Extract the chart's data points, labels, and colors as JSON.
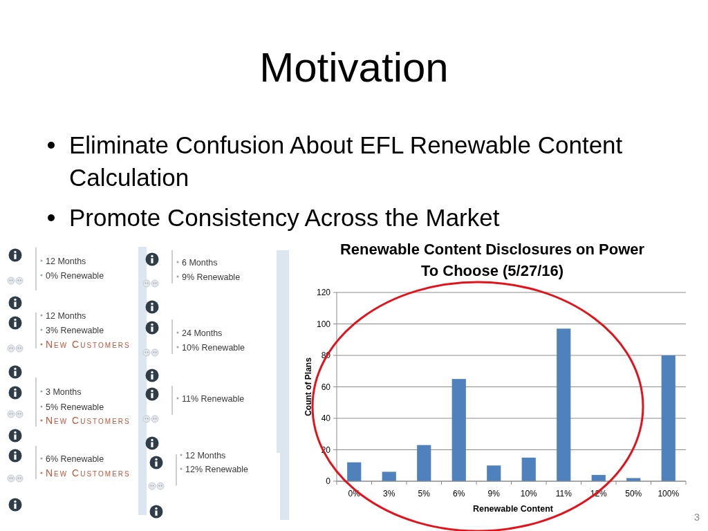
{
  "chart_data": {
    "type": "bar",
    "title": "Renewable Content Disclosures on Power To Choose (5/27/16)",
    "xlabel": "Renewable Content",
    "ylabel": "Count of Plans",
    "categories": [
      "0%",
      "3%",
      "5%",
      "6%",
      "9%",
      "10%",
      "11%",
      "12%",
      "50%",
      "100%"
    ],
    "values": [
      12,
      6,
      23,
      65,
      10,
      15,
      97,
      4,
      2,
      80
    ],
    "color": "#4f81bd",
    "ylim": [
      0,
      120
    ],
    "yticks": [
      0,
      20,
      40,
      60,
      80,
      100,
      120
    ],
    "grid": "y",
    "annotations": [
      "Motivation",
      "Eliminate Confusion About EFL Renewable Content Calculation",
      "Promote Consistency Across the Market",
      "3",
      "12 Months",
      "0% Renewable",
      "12 Months",
      "3% Renewable",
      "New Customers",
      "3 Months",
      "5% Renewable",
      "New Customers",
      "6% Renewable",
      "New Customers",
      "6 Months",
      "9% Renewable",
      "24 Months",
      "10% Renewable",
      "11% Renewable",
      "12 Months",
      "12% Renewable"
    ]
  }
}
